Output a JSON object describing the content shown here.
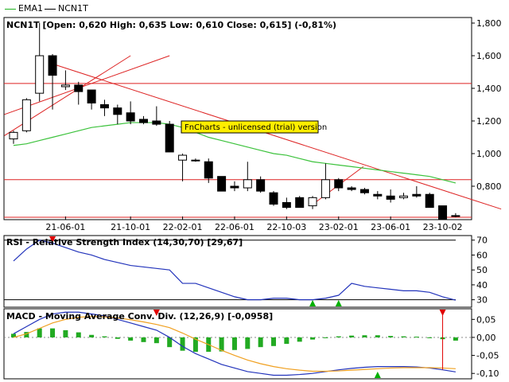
{
  "legend": [
    {
      "name": "EMA1",
      "color": "#22b322"
    },
    {
      "name": "NCN1T",
      "color": "#000000"
    }
  ],
  "colors": {
    "up_candle": "#ffffff",
    "down_candle": "#000000",
    "trendline": "#dd2222",
    "ema": "#3cc23c",
    "rsi_line": "#2233bb",
    "macd_line": "#2233bb",
    "signal_line": "#f0a020",
    "hist": "#22aa22",
    "panel_bg": "#ffffff",
    "watermark_bg": "#ffee00"
  },
  "price_title": "NCN1T [Open: 0,620  High: 0,635  Low: 0,610  Close: 0,615] (-0,81%)",
  "watermark": "FnCharts - unlicensed (trial) version",
  "x_labels": [
    "21-06-01",
    "21-10-01",
    "22-02-01",
    "22-06-01",
    "22-10-03",
    "23-02-01",
    "23-06-01",
    "23-10-02"
  ],
  "rsi_title": "RSI - Relative Strength Index (14,30,70) [29,67]",
  "macd_title": "MACD - Moving Average Conv. Div. (12,26,9) [-0,0958]",
  "chart_data": [
    {
      "type": "candlestick",
      "title": "NCN1T [Open: 0,620  High: 0,635  Low: 0,610  Close: 0,615] (-0,81%)",
      "ylim": [
        0.6,
        1.8
      ],
      "yticks": [
        "0,800",
        "1,000",
        "1,200",
        "1,400",
        "1,600",
        "1,800"
      ],
      "yticks_values": [
        0.8,
        1.0,
        1.2,
        1.4,
        1.6,
        1.8
      ],
      "horizontal_levels": [
        1.43,
        0.84,
        0.61
      ],
      "candles": [
        {
          "o": 1.09,
          "h": 1.14,
          "l": 1.06,
          "c": 1.13
        },
        {
          "o": 1.14,
          "h": 1.34,
          "l": 1.13,
          "c": 1.33
        },
        {
          "o": 1.37,
          "h": 1.8,
          "l": 1.32,
          "c": 1.6
        },
        {
          "o": 1.6,
          "h": 1.61,
          "l": 1.27,
          "c": 1.48
        },
        {
          "o": 1.41,
          "h": 1.51,
          "l": 1.39,
          "c": 1.42
        },
        {
          "o": 1.42,
          "h": 1.44,
          "l": 1.3,
          "c": 1.38
        },
        {
          "o": 1.39,
          "h": 1.39,
          "l": 1.27,
          "c": 1.31
        },
        {
          "o": 1.3,
          "h": 1.33,
          "l": 1.23,
          "c": 1.28
        },
        {
          "o": 1.28,
          "h": 1.3,
          "l": 1.18,
          "c": 1.24
        },
        {
          "o": 1.25,
          "h": 1.32,
          "l": 1.18,
          "c": 1.2
        },
        {
          "o": 1.21,
          "h": 1.23,
          "l": 1.18,
          "c": 1.19
        },
        {
          "o": 1.2,
          "h": 1.29,
          "l": 1.17,
          "c": 1.18
        },
        {
          "o": 1.18,
          "h": 1.2,
          "l": 1.02,
          "c": 1.01
        },
        {
          "o": 0.96,
          "h": 1.0,
          "l": 0.83,
          "c": 0.99
        },
        {
          "o": 0.96,
          "h": 0.97,
          "l": 0.95,
          "c": 0.96
        },
        {
          "o": 0.95,
          "h": 0.97,
          "l": 0.82,
          "c": 0.85
        },
        {
          "o": 0.86,
          "h": 0.86,
          "l": 0.77,
          "c": 0.77
        },
        {
          "o": 0.8,
          "h": 0.83,
          "l": 0.77,
          "c": 0.79
        },
        {
          "o": 0.79,
          "h": 0.95,
          "l": 0.77,
          "c": 0.84
        },
        {
          "o": 0.84,
          "h": 0.86,
          "l": 0.76,
          "c": 0.77
        },
        {
          "o": 0.76,
          "h": 0.77,
          "l": 0.68,
          "c": 0.69
        },
        {
          "o": 0.7,
          "h": 0.73,
          "l": 0.66,
          "c": 0.67
        },
        {
          "o": 0.73,
          "h": 0.74,
          "l": 0.67,
          "c": 0.67
        },
        {
          "o": 0.68,
          "h": 0.74,
          "l": 0.66,
          "c": 0.73
        },
        {
          "o": 0.73,
          "h": 0.94,
          "l": 0.72,
          "c": 0.84
        },
        {
          "o": 0.84,
          "h": 0.85,
          "l": 0.77,
          "c": 0.79
        },
        {
          "o": 0.79,
          "h": 0.8,
          "l": 0.77,
          "c": 0.78
        },
        {
          "o": 0.78,
          "h": 0.79,
          "l": 0.75,
          "c": 0.76
        },
        {
          "o": 0.75,
          "h": 0.77,
          "l": 0.72,
          "c": 0.74
        },
        {
          "o": 0.74,
          "h": 0.78,
          "l": 0.7,
          "c": 0.72
        },
        {
          "o": 0.73,
          "h": 0.76,
          "l": 0.72,
          "c": 0.74
        },
        {
          "o": 0.75,
          "h": 0.8,
          "l": 0.73,
          "c": 0.74
        },
        {
          "o": 0.75,
          "h": 0.76,
          "l": 0.67,
          "c": 0.67
        },
        {
          "o": 0.68,
          "h": 0.68,
          "l": 0.6,
          "c": 0.6
        },
        {
          "o": 0.62,
          "h": 0.635,
          "l": 0.61,
          "c": 0.615
        }
      ],
      "ema1": [
        1.05,
        1.06,
        1.08,
        1.1,
        1.12,
        1.14,
        1.16,
        1.17,
        1.18,
        1.19,
        1.19,
        1.19,
        1.18,
        1.16,
        1.13,
        1.1,
        1.08,
        1.06,
        1.04,
        1.02,
        1.0,
        0.99,
        0.97,
        0.95,
        0.94,
        0.93,
        0.92,
        0.91,
        0.9,
        0.89,
        0.88,
        0.87,
        0.86,
        0.84,
        0.82
      ]
    },
    {
      "type": "line",
      "title": "RSI - Relative Strength Index (14,30,70) [29,67]",
      "ylim": [
        25,
        72
      ],
      "yticks": [
        "30",
        "40",
        "50",
        "60",
        "70"
      ],
      "yticks_values": [
        30,
        40,
        50,
        60,
        70
      ],
      "levels": [
        30,
        70
      ],
      "values": [
        56,
        64,
        70,
        68,
        65,
        62,
        60,
        57,
        55,
        53,
        52,
        51,
        50,
        41,
        41,
        38,
        35,
        32,
        30,
        30,
        31,
        31,
        30,
        30,
        31,
        33,
        41,
        39,
        38,
        37,
        36,
        36,
        35,
        32,
        29.7
      ],
      "down_markers": [
        3
      ],
      "up_markers": [
        23,
        25
      ]
    },
    {
      "type": "line",
      "title": "MACD - Moving Average Conv. Div. (12,26,9) [-0,0958]",
      "ylim": [
        -0.115,
        0.075
      ],
      "yticks": [
        "-0,10",
        "-0,05",
        "0,00",
        "0,05"
      ],
      "yticks_values": [
        -0.1,
        -0.05,
        0.0,
        0.05
      ],
      "series": [
        {
          "name": "MACD",
          "values": [
            0.01,
            0.03,
            0.05,
            0.065,
            0.07,
            0.07,
            0.065,
            0.06,
            0.05,
            0.04,
            0.03,
            0.02,
            0.0,
            -0.025,
            -0.045,
            -0.06,
            -0.075,
            -0.085,
            -0.095,
            -0.1,
            -0.105,
            -0.105,
            -0.103,
            -0.1,
            -0.095,
            -0.09,
            -0.086,
            -0.083,
            -0.081,
            -0.081,
            -0.081,
            -0.082,
            -0.085,
            -0.09,
            -0.0958
          ]
        },
        {
          "name": "Signal",
          "values": [
            0.0,
            0.01,
            0.025,
            0.04,
            0.05,
            0.056,
            0.058,
            0.057,
            0.054,
            0.049,
            0.043,
            0.036,
            0.027,
            0.012,
            -0.005,
            -0.02,
            -0.036,
            -0.05,
            -0.063,
            -0.073,
            -0.081,
            -0.087,
            -0.091,
            -0.094,
            -0.094,
            -0.093,
            -0.091,
            -0.089,
            -0.087,
            -0.085,
            -0.084,
            -0.084,
            -0.084,
            -0.085,
            -0.087
          ]
        }
      ],
      "histogram": [
        0.01,
        0.015,
        0.025,
        0.025,
        0.02,
        0.014,
        0.007,
        0.003,
        -0.004,
        -0.009,
        -0.013,
        -0.016,
        -0.027,
        -0.037,
        -0.04,
        -0.04,
        -0.039,
        -0.035,
        -0.032,
        -0.027,
        -0.024,
        -0.018,
        -0.012,
        -0.006,
        -0.001,
        0.003,
        0.005,
        0.006,
        0.006,
        0.004,
        0.003,
        0.002,
        -0.001,
        -0.005,
        -0.009
      ],
      "down_markers": [
        11,
        33
      ],
      "up_markers": [
        28
      ]
    }
  ]
}
